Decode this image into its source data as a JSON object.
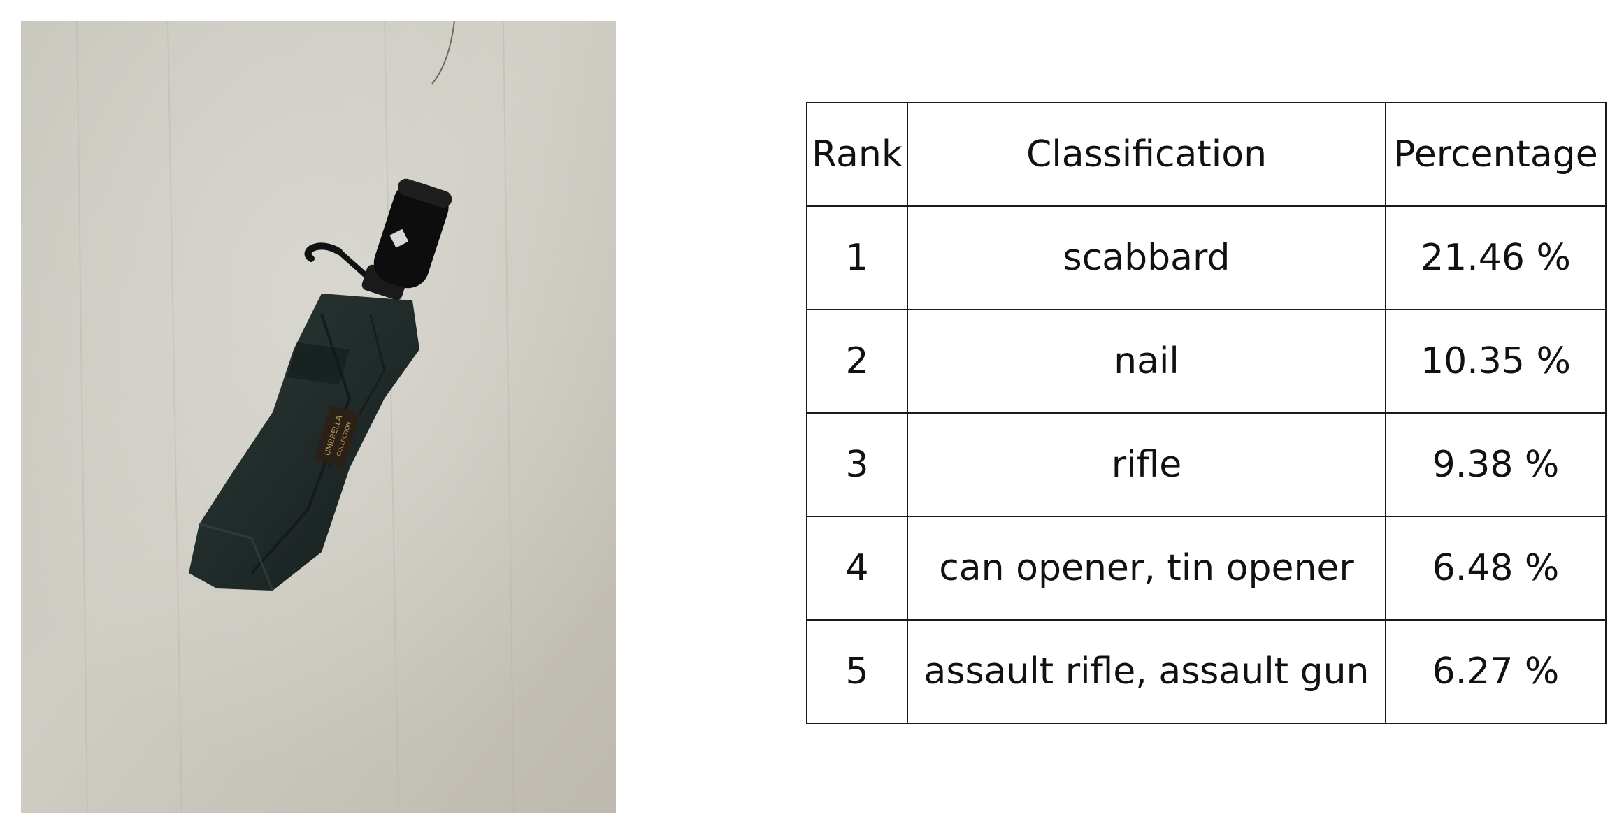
{
  "image": {
    "subject": "folded-umbrella-photo",
    "label_text": [
      "UMBRELLA",
      "COLLECTION"
    ],
    "colors": {
      "background": "#c8c6bd",
      "umbrella_fabric": "#1f2a2a",
      "umbrella_handle": "#0d0d0d",
      "label_patch": "#2a2016",
      "label_text": "#b89a5c"
    }
  },
  "table": {
    "headers": {
      "rank": "Rank",
      "classification": "Classification",
      "percentage": "Percentage"
    },
    "rows": [
      {
        "rank": "1",
        "classification": "scabbard",
        "percentage": "21.46 %"
      },
      {
        "rank": "2",
        "classification": "nail",
        "percentage": "10.35 %"
      },
      {
        "rank": "3",
        "classification": "rifle",
        "percentage": "9.38 %"
      },
      {
        "rank": "4",
        "classification": "can opener, tin opener",
        "percentage": "6.48 %"
      },
      {
        "rank": "5",
        "classification": "assault rifle, assault gun",
        "percentage": "6.27 %"
      }
    ]
  }
}
